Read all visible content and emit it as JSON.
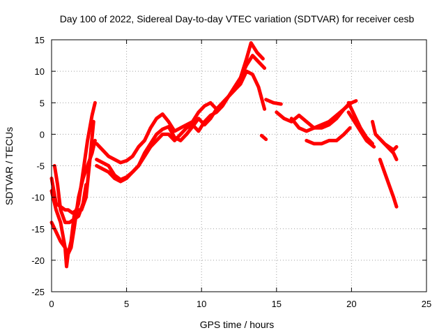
{
  "chart_data": {
    "type": "scatter",
    "title": "Day 100 of 2022, Sidereal Day-to-day VTEC variation (SDTVAR) for receiver cesb",
    "xlabel": "GPS time / hours",
    "ylabel": "SDTVAR / TECUs",
    "xlim": [
      0,
      25
    ],
    "ylim": [
      -25,
      15
    ],
    "xticks": [
      "0",
      "5",
      "10",
      "15",
      "20",
      "25"
    ],
    "yticks": [
      "-25",
      "-20",
      "-15",
      "-10",
      "-5",
      "0",
      "5",
      "10",
      "15"
    ],
    "grid": true,
    "marker": "plus",
    "color": "#ff0000",
    "series": [
      {
        "name": "arc-1",
        "x": [
          0.0,
          0.3,
          0.6,
          0.9,
          1.1,
          1.4,
          1.7,
          2.0,
          2.3,
          2.6,
          2.8
        ],
        "y": [
          -7,
          -11,
          -11.5,
          -12,
          -12,
          -12.5,
          -12,
          -12,
          -10,
          -3,
          2
        ]
      },
      {
        "name": "arc-2",
        "x": [
          0.0,
          0.3,
          0.6,
          0.9,
          1.1,
          1.3,
          1.5,
          1.8,
          2.1,
          2.4,
          2.7,
          2.9
        ],
        "y": [
          -14,
          -15.5,
          -17,
          -18,
          -19,
          -18,
          -15,
          -10,
          -7,
          -5,
          -3,
          -1
        ]
      },
      {
        "name": "arc-3",
        "x": [
          0.0,
          0.3,
          0.6,
          0.9,
          1.0,
          1.1,
          1.3,
          1.5,
          1.8,
          2.1,
          2.4,
          2.7,
          2.9
        ],
        "y": [
          -9,
          -12,
          -14,
          -18,
          -21,
          -19,
          -17,
          -13,
          -11,
          -6,
          -1,
          3,
          5
        ]
      },
      {
        "name": "arc-4",
        "x": [
          0.2,
          0.4,
          0.6,
          0.9,
          1.2,
          1.5,
          1.8,
          2.1,
          2.3
        ],
        "y": [
          -5,
          -8,
          -12,
          -14,
          -14,
          -13.5,
          -13,
          -11,
          -8
        ]
      },
      {
        "name": "arc-5",
        "x": [
          3.0,
          3.4,
          3.8,
          4.2,
          4.6,
          5.0,
          5.4,
          5.8,
          6.2,
          6.6,
          7.0,
          7.4,
          7.8,
          8.2,
          8.6,
          9.0,
          9.4,
          9.8,
          10.2,
          10.6,
          11.0,
          11.4,
          11.8,
          12.2,
          12.6,
          13.0,
          13.4,
          13.8,
          14.2
        ],
        "y": [
          -1.5,
          -2.5,
          -3.5,
          -4,
          -4.5,
          -4.2,
          -3.5,
          -2,
          -1,
          1,
          2.5,
          3.2,
          2,
          0.5,
          1,
          1.5,
          2,
          3.5,
          4.5,
          5,
          4,
          5,
          6,
          7,
          9,
          11,
          12.5,
          11.5,
          10.5
        ]
      },
      {
        "name": "arc-6",
        "x": [
          3.0,
          3.4,
          3.8,
          4.2,
          4.6,
          5.0,
          5.4,
          5.8,
          6.2,
          6.6,
          7.0,
          7.4,
          7.8,
          8.2,
          8.6,
          9.0,
          9.4,
          9.8,
          10.2,
          10.6,
          11.0,
          11.4,
          11.8,
          12.2,
          12.6,
          13.0,
          13.3,
          13.7,
          14.1
        ],
        "y": [
          -4,
          -4.5,
          -5,
          -6.5,
          -7.2,
          -6.8,
          -6,
          -5,
          -3.5,
          -2,
          -1,
          0,
          0,
          -1,
          0,
          1,
          1.5,
          0.5,
          2,
          3,
          3.5,
          4.5,
          6,
          7.5,
          9,
          12,
          14.5,
          13,
          12
        ]
      },
      {
        "name": "arc-7",
        "x": [
          3.0,
          3.4,
          3.8,
          4.2,
          4.6,
          5.0,
          5.4,
          5.8,
          6.2,
          6.6,
          7.0,
          7.4,
          7.8,
          8.2,
          8.6,
          9.0,
          9.4,
          9.8,
          10.2,
          10.6,
          11.0,
          11.4,
          11.8,
          12.2,
          12.6,
          13.0,
          13.4,
          13.8,
          14.2
        ],
        "y": [
          -5,
          -5.5,
          -6,
          -7,
          -7.5,
          -7,
          -6,
          -5,
          -3,
          -1.5,
          0,
          0.8,
          1.2,
          -0.5,
          -1,
          0,
          1.2,
          2.5,
          1.5,
          2.5,
          4,
          5,
          6,
          7,
          8,
          10,
          9.5,
          7.5,
          4
        ]
      },
      {
        "name": "arc-8",
        "x": [
          14.0,
          14.3
        ],
        "y": [
          -0.2,
          -0.8
        ]
      },
      {
        "name": "arc-9",
        "x": [
          14.3,
          14.8,
          15.3
        ],
        "y": [
          5.5,
          5,
          4.8
        ]
      },
      {
        "name": "arc-10",
        "x": [
          15.0,
          15.5,
          16.0,
          16.5,
          17.0,
          17.5,
          18.0,
          18.5,
          19.0,
          19.5,
          20.0,
          20.3
        ],
        "y": [
          3.5,
          2.5,
          2,
          3,
          2,
          1,
          1,
          1.5,
          2.5,
          4,
          5,
          5.3
        ]
      },
      {
        "name": "arc-11",
        "x": [
          16.0,
          16.5,
          17.0,
          17.5,
          18.0,
          18.5,
          19.0,
          19.5,
          19.9
        ],
        "y": [
          2.5,
          1,
          0.5,
          1,
          1.5,
          2,
          3,
          4,
          5
        ]
      },
      {
        "name": "arc-12",
        "x": [
          17.0,
          17.5,
          18.0,
          18.5,
          19.0,
          19.5,
          19.9
        ],
        "y": [
          -1,
          -1.5,
          -1.5,
          -1,
          -1,
          0,
          1
        ]
      },
      {
        "name": "arc-13",
        "x": [
          19.8,
          20.2,
          20.6,
          21.0,
          21.4
        ],
        "y": [
          5,
          3,
          1,
          -0.5,
          -1.5
        ]
      },
      {
        "name": "arc-14",
        "x": [
          19.8,
          20.2,
          20.6,
          21.0,
          21.5
        ],
        "y": [
          3.5,
          2,
          0.5,
          -1,
          -2
        ]
      },
      {
        "name": "arc-15",
        "x": [
          21.4,
          21.6,
          22.0,
          22.4,
          22.8,
          23.0
        ],
        "y": [
          2,
          0,
          -1,
          -2,
          -3,
          -4
        ]
      },
      {
        "name": "arc-16",
        "x": [
          21.8,
          22.2,
          22.5,
          22.8,
          23.0
        ],
        "y": [
          -0.5,
          -1.5,
          -2,
          -2.5,
          -2
        ]
      },
      {
        "name": "arc-17",
        "x": [
          21.9,
          22.2,
          22.5,
          22.8,
          23.0
        ],
        "y": [
          -4,
          -6,
          -8,
          -10,
          -11.5
        ]
      }
    ]
  }
}
